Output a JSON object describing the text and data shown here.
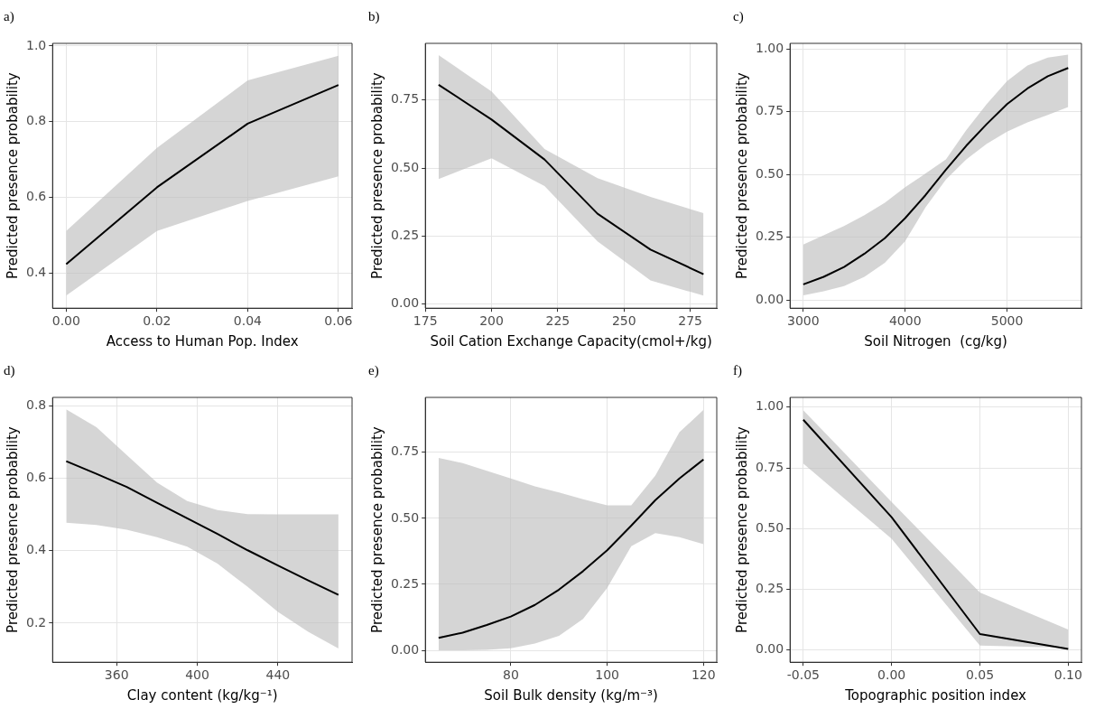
{
  "chart_data": [
    {
      "type": "line",
      "title": "a)",
      "xlabel": "Access to Human Pop. Index",
      "ylabel": "Predicted presence probability",
      "x": [
        0,
        0.02,
        0.04,
        0.06
      ],
      "series": [
        {
          "color": "#000000",
          "values": [
            0.424,
            0.627,
            0.795,
            0.897
          ],
          "lower": [
            0.341,
            0.512,
            0.591,
            0.656
          ],
          "upper": [
            0.512,
            0.731,
            0.909,
            0.974
          ]
        }
      ],
      "xlim": [
        -0.003,
        0.063
      ],
      "ylim": [
        0.308,
        1.007
      ],
      "xticks": [
        {
          "value": 0,
          "label": "0.00"
        },
        {
          "value": 0.02,
          "label": "0.02"
        },
        {
          "value": 0.04,
          "label": "0.04"
        },
        {
          "value": 0.06,
          "label": "0.06"
        }
      ],
      "yticks": [
        0.4,
        0.6,
        0.8,
        {
          "value": 1,
          "label": "1.0"
        }
      ],
      "grid": true
    },
    {
      "type": "line",
      "title": "b)",
      "xlabel": "Soil Cation Exchange Capacity(cmol+/kg)",
      "ylabel": "Predicted presence probability",
      "x": [
        180,
        200,
        220,
        240,
        260,
        280
      ],
      "series": [
        {
          "color": "#000000",
          "values": [
            0.806,
            0.678,
            0.531,
            0.332,
            0.2,
            0.11
          ],
          "lower": [
            0.459,
            0.536,
            0.434,
            0.23,
            0.087,
            0.031
          ],
          "upper": [
            0.915,
            0.781,
            0.57,
            0.463,
            0.394,
            0.334
          ]
        }
      ],
      "xlim": [
        175,
        285
      ],
      "ylim": [
        -0.015,
        0.958
      ],
      "xticks": [
        175,
        200,
        225,
        250,
        275
      ],
      "yticks": [
        {
          "value": 0,
          "label": "0.00"
        },
        {
          "value": 0.25,
          "label": "0.25"
        },
        {
          "value": 0.5,
          "label": "0.50"
        },
        {
          "value": 0.75,
          "label": "0.75"
        }
      ],
      "grid": true
    },
    {
      "type": "line",
      "title": "c)",
      "xlabel": "Soil Nitrogen  (cg/kg)",
      "ylabel": "Predicted presence probability",
      "x": [
        3000,
        3200,
        3400,
        3600,
        3800,
        4000,
        4200,
        4400,
        4600,
        4800,
        5000,
        5200,
        5400,
        5600
      ],
      "series": [
        {
          "color": "#000000",
          "values": [
            0.062,
            0.092,
            0.131,
            0.184,
            0.246,
            0.326,
            0.418,
            0.519,
            0.615,
            0.701,
            0.781,
            0.843,
            0.892,
            0.925
          ],
          "lower": [
            0.018,
            0.034,
            0.055,
            0.092,
            0.148,
            0.234,
            0.369,
            0.48,
            0.56,
            0.622,
            0.671,
            0.708,
            0.738,
            0.769
          ],
          "upper": [
            0.221,
            0.258,
            0.295,
            0.338,
            0.387,
            0.449,
            0.504,
            0.56,
            0.677,
            0.781,
            0.873,
            0.935,
            0.966,
            0.978
          ]
        }
      ],
      "xlim": [
        2870,
        5730
      ],
      "ylim": [
        -0.033,
        1.023
      ],
      "xticks": [
        3000,
        4000,
        5000
      ],
      "yticks": [
        {
          "value": 0,
          "label": "0.00"
        },
        {
          "value": 0.25,
          "label": "0.25"
        },
        {
          "value": 0.5,
          "label": "0.50"
        },
        {
          "value": 0.75,
          "label": "0.75"
        },
        {
          "value": 1,
          "label": "1.00"
        }
      ],
      "grid": true
    },
    {
      "type": "line",
      "title": "d)",
      "xlabel": "Clay content (kg/kg⁻¹)",
      "ylabel": "Predicted presence probability",
      "x": [
        335,
        350,
        365,
        380,
        395,
        410,
        425,
        440,
        455,
        470
      ],
      "series": [
        {
          "color": "#000000",
          "values": [
            0.647,
            0.612,
            0.576,
            0.532,
            0.489,
            0.446,
            0.401,
            0.359,
            0.318,
            0.278
          ],
          "lower": [
            0.477,
            0.471,
            0.458,
            0.437,
            0.411,
            0.364,
            0.3,
            0.231,
            0.176,
            0.13
          ],
          "upper": [
            0.79,
            0.741,
            0.664,
            0.588,
            0.537,
            0.512,
            0.501,
            0.5,
            0.5,
            0.5
          ]
        }
      ],
      "xlim": [
        328.25,
        476.75
      ],
      "ylim": [
        0.092,
        0.823
      ],
      "xticks": [
        360,
        400,
        440
      ],
      "yticks": [
        0.2,
        0.4,
        0.6,
        0.8
      ],
      "grid": true
    },
    {
      "type": "line",
      "title": "e)",
      "xlabel": "Soil Bulk density (kg/m⁻³)",
      "ylabel": "Predicted presence probability",
      "x": [
        65,
        70,
        75,
        80,
        85,
        90,
        95,
        100,
        105,
        110,
        115,
        120
      ],
      "series": [
        {
          "color": "#000000",
          "values": [
            0.047,
            0.067,
            0.096,
            0.128,
            0.172,
            0.23,
            0.3,
            0.379,
            0.472,
            0.569,
            0.651,
            0.723
          ],
          "lower": [
            0,
            0,
            0.002,
            0.008,
            0.026,
            0.055,
            0.119,
            0.236,
            0.394,
            0.444,
            0.429,
            0.402
          ],
          "upper": [
            0.729,
            0.709,
            0.68,
            0.651,
            0.621,
            0.598,
            0.572,
            0.549,
            0.549,
            0.662,
            0.826,
            0.911
          ]
        }
      ],
      "xlim": [
        62.25,
        122.75
      ],
      "ylim": [
        -0.045,
        0.958
      ],
      "xticks": [
        80,
        100,
        120
      ],
      "yticks": [
        {
          "value": 0,
          "label": "0.00"
        },
        {
          "value": 0.25,
          "label": "0.25"
        },
        {
          "value": 0.5,
          "label": "0.50"
        },
        {
          "value": 0.75,
          "label": "0.75"
        }
      ],
      "grid": true
    },
    {
      "type": "line",
      "title": "f)",
      "xlabel": "Topographic position index",
      "ylabel": "Predicted presence probability",
      "x": [
        -0.05,
        0,
        0.05,
        0.1
      ],
      "series": [
        {
          "color": "#000000",
          "values": [
            0.948,
            0.547,
            0.066,
            0.005
          ],
          "lower": [
            0.768,
            0.458,
            0.019,
            0.009
          ],
          "upper": [
            0.987,
            0.61,
            0.237,
            0.085
          ]
        }
      ],
      "xlim": [
        -0.0575,
        0.1075
      ],
      "ylim": [
        -0.05,
        1.04
      ],
      "xticks": [
        {
          "value": -0.05,
          "label": "-0.05"
        },
        {
          "value": 0,
          "label": "0.00"
        },
        {
          "value": 0.05,
          "label": "0.05"
        },
        {
          "value": 0.1,
          "label": "0.10"
        }
      ],
      "yticks": [
        {
          "value": 0,
          "label": "0.00"
        },
        {
          "value": 0.25,
          "label": "0.25"
        },
        {
          "value": 0.5,
          "label": "0.50"
        },
        {
          "value": 0.75,
          "label": "0.75"
        },
        {
          "value": 1,
          "label": "1.00"
        }
      ],
      "grid": true
    }
  ]
}
